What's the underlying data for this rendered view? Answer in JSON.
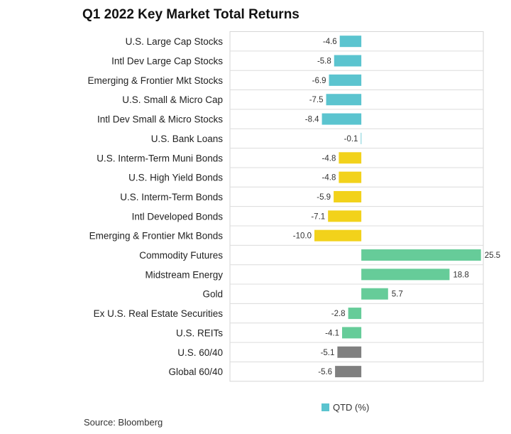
{
  "title": "Q1 2022 Key Market Total Returns",
  "source": "Source: Bloomberg",
  "chart_data": {
    "type": "bar",
    "orientation": "horizontal",
    "title": "Q1 2022 Key Market Total Returns",
    "xlabel": "",
    "ylabel": "",
    "grid": false,
    "legend_position": "bottom",
    "categories": [
      "U.S. Large Cap Stocks",
      "Intl Dev Large Cap Stocks",
      "Emerging & Frontier Mkt Stocks",
      "U.S. Small & Micro Cap",
      "Intl Dev Small & Micro Stocks",
      "U.S. Bank Loans",
      "U.S. Interm-Term Muni Bonds",
      "U.S. High Yield Bonds",
      "U.S. Interm-Term Bonds",
      "Intl Developed Bonds",
      "Emerging & Frontier Mkt Bonds",
      "Commodity Futures",
      "Midstream Energy",
      "Gold",
      "Ex U.S. Real Estate Securities",
      "U.S. REITs",
      "U.S. 60/40",
      "Global 60/40"
    ],
    "series": [
      {
        "name": "QTD (%)",
        "values": [
          -4.6,
          -5.8,
          -6.9,
          -7.5,
          -8.4,
          -0.1,
          -4.8,
          -4.8,
          -5.9,
          -7.1,
          -10.0,
          25.5,
          18.8,
          5.7,
          -2.8,
          -4.1,
          -5.1,
          -5.6
        ],
        "value_labels": [
          "-4.6",
          "-5.8",
          "-6.9",
          "-7.5",
          "-8.4",
          "-0.1",
          "-4.8",
          "-4.8",
          "-5.9",
          "-7.1",
          "-10.0",
          "25.5",
          "18.8",
          "5.7",
          "-2.8",
          "-4.1",
          "-5.1",
          "-5.6"
        ]
      }
    ],
    "bar_colors": [
      "#5bc4cf",
      "#5bc4cf",
      "#5bc4cf",
      "#5bc4cf",
      "#5bc4cf",
      "#5bc4cf",
      "#f2d21b",
      "#f2d21b",
      "#f2d21b",
      "#f2d21b",
      "#f2d21b",
      "#66cc99",
      "#66cc99",
      "#66cc99",
      "#66cc99",
      "#66cc99",
      "#808080",
      "#808080"
    ],
    "xlim": [
      -28,
      26
    ]
  },
  "legend": {
    "label": "QTD (%)",
    "color": "#5bc4cf"
  }
}
